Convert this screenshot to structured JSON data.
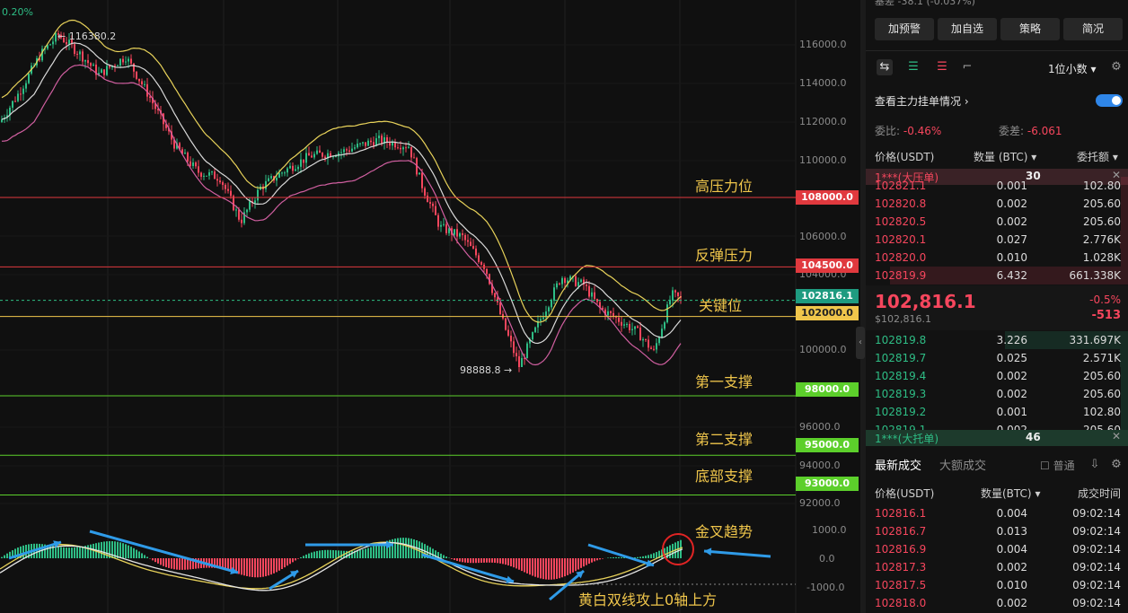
{
  "chart": {
    "top_pct": "0.20%",
    "high_marker": "← 116380.2",
    "low_marker": "98888.8 →",
    "axis_ticks": [
      "116000.0",
      "114000.0",
      "112000.0",
      "110000.0",
      "108000.0",
      "106000.0",
      "104000.0",
      "102000.0",
      "100000.0",
      "98000.0",
      "96000.0",
      "95000.0",
      "94000.0",
      "93000.0",
      "92000.0",
      "1000.0",
      "0.0",
      "-1000.0"
    ],
    "levels": [
      {
        "label": "高压力位",
        "price": "108000.0",
        "color": "#e0393e"
      },
      {
        "label": "反弹压力",
        "price": "104500.0",
        "color": "#e0393e"
      },
      {
        "label": "关键位",
        "price": "102000.0",
        "color": "#f0c64b"
      },
      {
        "label": "第一支撑",
        "price": "98000.0",
        "color": "#5ccf2b"
      },
      {
        "label": "第二支撑",
        "price": "95000.0",
        "color": "#5ccf2b"
      },
      {
        "label": "底部支撑",
        "price": "93000.0",
        "color": "#5ccf2b"
      }
    ],
    "current_price_tag": "102816.1",
    "annotations": {
      "golden_cross": "金叉趋势",
      "macd_note": "黄白双线攻上0轴上方"
    },
    "colors": {
      "up": "#2ebd85",
      "down": "#f6465d",
      "upper_band": "#e8d25a",
      "mid_band": "#d9d9d9",
      "lower_band": "#d05fa0",
      "arrow": "#2f9be8"
    }
  },
  "panel": {
    "top_partial": "基差  -38.1 (-0.037%)",
    "buttons": [
      "加预警",
      "加自选",
      "策略",
      "简况"
    ],
    "precision": "1位小数",
    "main_orders_label": "查看主力挂单情况",
    "ratio_label": "委比:",
    "ratio_value": "-0.46%",
    "diff_label": "委差:",
    "diff_value": "-6.061",
    "columns": {
      "price": "价格(USDT)",
      "qty": "数量 (BTC)",
      "total": "委托额"
    },
    "big_ask": {
      "label": "1***(大压单)",
      "qty": "30"
    },
    "asks": [
      {
        "price": "102821.1",
        "qty": "0.001",
        "total": "102.80"
      },
      {
        "price": "102820.8",
        "qty": "0.002",
        "total": "205.60"
      },
      {
        "price": "102820.5",
        "qty": "0.002",
        "total": "205.60"
      },
      {
        "price": "102820.1",
        "qty": "0.027",
        "total": "2.776K"
      },
      {
        "price": "102820.0",
        "qty": "0.010",
        "total": "1.028K"
      },
      {
        "price": "102819.9",
        "qty": "6.432",
        "total": "661.338K"
      }
    ],
    "last_price": "102,816.1",
    "last_price_usd": "$102,816.1",
    "change_pct": "-0.5%",
    "change_abs": "-513",
    "bids": [
      {
        "price": "102819.8",
        "qty": "3.226",
        "total": "331.697K"
      },
      {
        "price": "102819.7",
        "qty": "0.025",
        "total": "2.571K"
      },
      {
        "price": "102819.4",
        "qty": "0.002",
        "total": "205.60"
      },
      {
        "price": "102819.3",
        "qty": "0.002",
        "total": "205.60"
      },
      {
        "price": "102819.2",
        "qty": "0.001",
        "total": "102.80"
      },
      {
        "price": "102819.1",
        "qty": "0.002",
        "total": "205.60"
      }
    ],
    "big_bid": {
      "label": "1***(大托单)",
      "qty": "46"
    },
    "trades_tabs": [
      "最新成交",
      "大额成交"
    ],
    "normal_label": "普通",
    "trade_columns": {
      "price": "价格(USDT)",
      "qty": "数量(BTC)",
      "time": "成交时间"
    },
    "trades": [
      {
        "price": "102816.1",
        "qty": "0.004",
        "time": "09:02:14"
      },
      {
        "price": "102816.7",
        "qty": "0.013",
        "time": "09:02:14"
      },
      {
        "price": "102816.9",
        "qty": "0.004",
        "time": "09:02:14"
      },
      {
        "price": "102817.3",
        "qty": "0.002",
        "time": "09:02:14"
      },
      {
        "price": "102817.5",
        "qty": "0.010",
        "time": "09:02:14"
      },
      {
        "price": "102818.0",
        "qty": "0.002",
        "time": "09:02:14"
      }
    ]
  }
}
